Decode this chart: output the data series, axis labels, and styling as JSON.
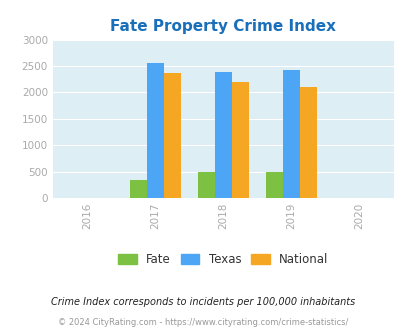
{
  "title": "Fate Property Crime Index",
  "title_color": "#1a6fba",
  "years": [
    2017,
    2018,
    2019
  ],
  "fate_values": [
    350,
    500,
    500
  ],
  "texas_values": [
    2560,
    2380,
    2420
  ],
  "national_values": [
    2360,
    2190,
    2100
  ],
  "fate_color": "#7dc142",
  "texas_color": "#4da6f5",
  "national_color": "#f5a623",
  "xlim": [
    2015.5,
    2020.5
  ],
  "ylim": [
    0,
    3000
  ],
  "yticks": [
    0,
    500,
    1000,
    1500,
    2000,
    2500,
    3000
  ],
  "xticks": [
    2016,
    2017,
    2018,
    2019,
    2020
  ],
  "bg_color": "#ddeef4",
  "bar_width": 0.25,
  "legend_labels": [
    "Fate",
    "Texas",
    "National"
  ],
  "footnote1": "Crime Index corresponds to incidents per 100,000 inhabitants",
  "footnote2": "© 2024 CityRating.com - https://www.cityrating.com/crime-statistics/",
  "footnote1_color": "#222222",
  "footnote2_color": "#999999",
  "tick_label_color": "#aaaaaa",
  "grid_color": "#ffffff",
  "tick_fontsize": 7.5,
  "title_fontsize": 11
}
